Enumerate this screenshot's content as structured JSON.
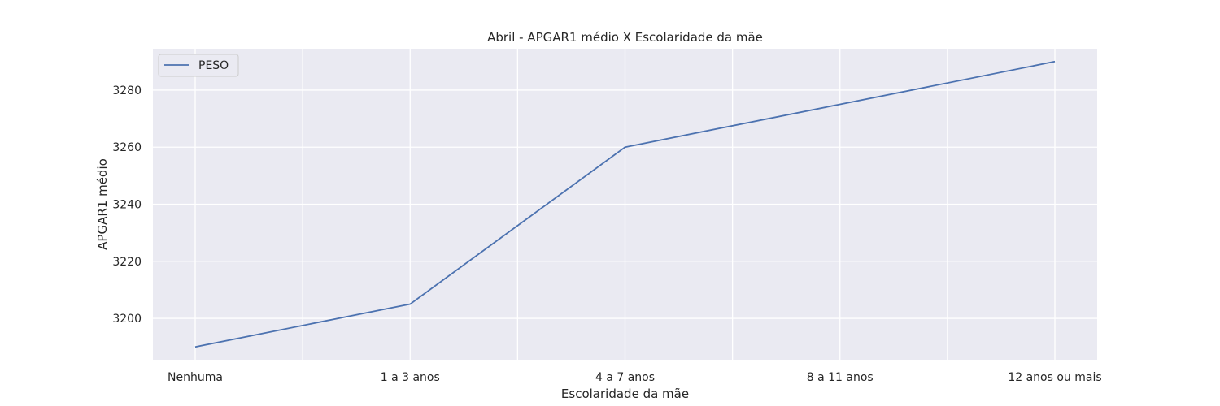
{
  "chart_data": {
    "type": "line",
    "title": "Abril - APGAR1 médio X Escolaridade da mãe",
    "xlabel": "Escolaridade da mãe",
    "ylabel": "APGAR1 médio",
    "categories": [
      "Nenhuma",
      "1 a 3 anos",
      "4 a 7 anos",
      "8 a 11 anos",
      "12 anos ou mais"
    ],
    "series": [
      {
        "name": "PESO",
        "values": [
          3190,
          3205,
          3260,
          3275,
          3290
        ],
        "color": "#4c72b0"
      }
    ],
    "yticks": [
      3200,
      3220,
      3240,
      3260,
      3280
    ],
    "ylim": [
      3185.5,
      3294.5
    ],
    "grid": true,
    "legend_position": "top-left",
    "colors": {
      "plot_background": "#eaeaf2",
      "grid": "#ffffff",
      "text": "#262626"
    }
  }
}
